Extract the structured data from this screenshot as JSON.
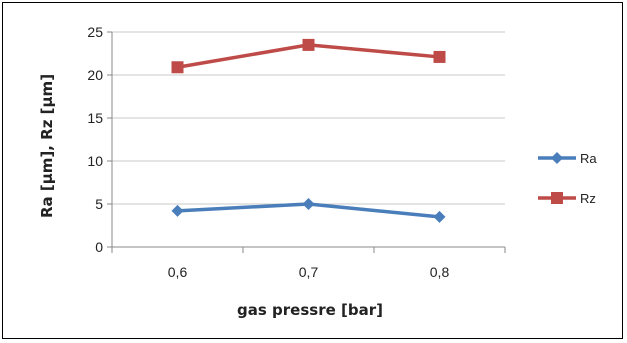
{
  "chart_data": {
    "type": "line",
    "categories": [
      "0,6",
      "0,7",
      "0,8"
    ],
    "series": [
      {
        "name": "Ra",
        "values": [
          4.2,
          5.0,
          3.5
        ],
        "color": "#4A7EBB",
        "marker": "diamond"
      },
      {
        "name": "Rz",
        "values": [
          20.9,
          23.5,
          22.1
        ],
        "color": "#BE4B48",
        "marker": "square"
      }
    ],
    "xlabel": "gas pressre [bar]",
    "ylabel": "Ra [µm], Rz [µm]",
    "ylim": [
      0,
      25
    ],
    "yticks": [
      "0",
      "5",
      "10",
      "15",
      "20",
      "25"
    ],
    "grid": true,
    "legend_position": "right"
  }
}
